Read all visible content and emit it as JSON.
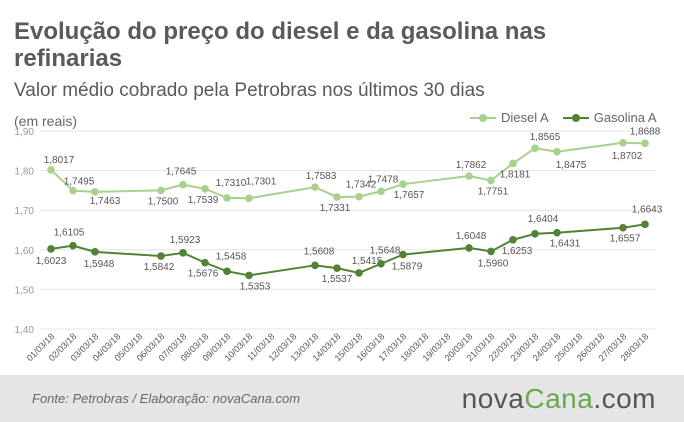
{
  "header": {
    "title": "Evolução do preço do diesel e da gasolina nas refinarias",
    "subtitle": "Valor médio cobrado pela Petrobras nos últimos 30 dias",
    "unit": "(em reais)"
  },
  "footer": {
    "source": "Fonte:  Petrobras  / Elaboração:  novaCana.com",
    "brand_main": "nova",
    "brand_accent": "Cana",
    "brand_suffix": ".com"
  },
  "colors": {
    "diesel": "#a9d18e",
    "gasolina": "#548235",
    "grid": "#e3e3e3",
    "tick_text": "#999999",
    "footer_bg": "#e5e5e5"
  },
  "chart_data": {
    "type": "line",
    "categories": [
      "01/03/18",
      "02/03/18",
      "03/03/18",
      "04/03/18",
      "05/03/18",
      "06/03/18",
      "07/03/18",
      "08/03/18",
      "09/03/18",
      "10/03/18",
      "11/03/18",
      "12/03/18",
      "13/03/18",
      "14/03/18",
      "15/03/18",
      "16/03/18",
      "17/03/18",
      "18/03/18",
      "19/03/18",
      "20/03/18",
      "21/03/18",
      "22/03/18",
      "23/03/18",
      "24/03/18",
      "25/03/18",
      "26/03/18",
      "27/03/18",
      "28/03/18"
    ],
    "series": [
      {
        "name": "Diesel A",
        "points": [
          {
            "x": "01/03/18",
            "y": 1.8017,
            "label": "1,8017"
          },
          {
            "x": "02/03/18",
            "y": 1.7495,
            "label": "1,7495"
          },
          {
            "x": "03/03/18",
            "y": 1.7463,
            "label": "1,7463"
          },
          {
            "x": "06/03/18",
            "y": 1.75,
            "label": "1,7500"
          },
          {
            "x": "07/03/18",
            "y": 1.7645,
            "label": "1,7645"
          },
          {
            "x": "08/03/18",
            "y": 1.7539,
            "label": "1,7539"
          },
          {
            "x": "09/03/18",
            "y": 1.731,
            "label": "1,7310"
          },
          {
            "x": "10/03/18",
            "y": 1.7301,
            "label": "1,7301"
          },
          {
            "x": "13/03/18",
            "y": 1.7583,
            "label": "1,7583"
          },
          {
            "x": "14/03/18",
            "y": 1.7331,
            "label": "1,7331"
          },
          {
            "x": "15/03/18",
            "y": 1.7342,
            "label": "1,7342"
          },
          {
            "x": "16/03/18",
            "y": 1.7478,
            "label": "1,7478"
          },
          {
            "x": "17/03/18",
            "y": 1.7657,
            "label": "1,7657"
          },
          {
            "x": "20/03/18",
            "y": 1.7862,
            "label": "1,7862"
          },
          {
            "x": "21/03/18",
            "y": 1.7751,
            "label": "1,7751"
          },
          {
            "x": "22/03/18",
            "y": 1.8181,
            "label": "1,8181"
          },
          {
            "x": "23/03/18",
            "y": 1.8565,
            "label": "1,8565"
          },
          {
            "x": "24/03/18",
            "y": 1.8475,
            "label": "1,8475"
          },
          {
            "x": "27/03/18",
            "y": 1.8702,
            "label": "1,8702"
          },
          {
            "x": "28/03/18",
            "y": 1.8688,
            "label": "1,8688"
          }
        ]
      },
      {
        "name": "Gasolina A",
        "points": [
          {
            "x": "01/03/18",
            "y": 1.6023,
            "label": "1,6023"
          },
          {
            "x": "02/03/18",
            "y": 1.6105,
            "label": "1,6105"
          },
          {
            "x": "03/03/18",
            "y": 1.5948,
            "label": "1,5948"
          },
          {
            "x": "06/03/18",
            "y": 1.5842,
            "label": "1,5842"
          },
          {
            "x": "07/03/18",
            "y": 1.5923,
            "label": "1,5923"
          },
          {
            "x": "08/03/18",
            "y": 1.5676,
            "label": "1,5676"
          },
          {
            "x": "09/03/18",
            "y": 1.5458,
            "label": "1,5458"
          },
          {
            "x": "10/03/18",
            "y": 1.5353,
            "label": "1,5353"
          },
          {
            "x": "13/03/18",
            "y": 1.5608,
            "label": "1,5608"
          },
          {
            "x": "14/03/18",
            "y": 1.5537,
            "label": "1,5537"
          },
          {
            "x": "15/03/18",
            "y": 1.5415,
            "label": "1,5415"
          },
          {
            "x": "16/03/18",
            "y": 1.5648,
            "label": "1,5648"
          },
          {
            "x": "17/03/18",
            "y": 1.5879,
            "label": "1,5879"
          },
          {
            "x": "20/03/18",
            "y": 1.6048,
            "label": "1,6048"
          },
          {
            "x": "21/03/18",
            "y": 1.596,
            "label": "1,5960"
          },
          {
            "x": "22/03/18",
            "y": 1.6253,
            "label": "1,6253"
          },
          {
            "x": "23/03/18",
            "y": 1.6404,
            "label": "1,6404"
          },
          {
            "x": "24/03/18",
            "y": 1.6431,
            "label": "1,6431"
          },
          {
            "x": "27/03/18",
            "y": 1.6557,
            "label": "1,6557"
          },
          {
            "x": "28/03/18",
            "y": 1.6643,
            "label": "1,6643"
          }
        ]
      }
    ],
    "yticks": [
      1.4,
      1.5,
      1.6,
      1.7,
      1.8,
      1.9
    ],
    "ytick_labels": [
      "1,40",
      "1,50",
      "1,60",
      "1,70",
      "1,80",
      "1,90"
    ],
    "ylim": [
      1.4,
      1.9
    ],
    "grid": true,
    "legend": "top-right"
  }
}
